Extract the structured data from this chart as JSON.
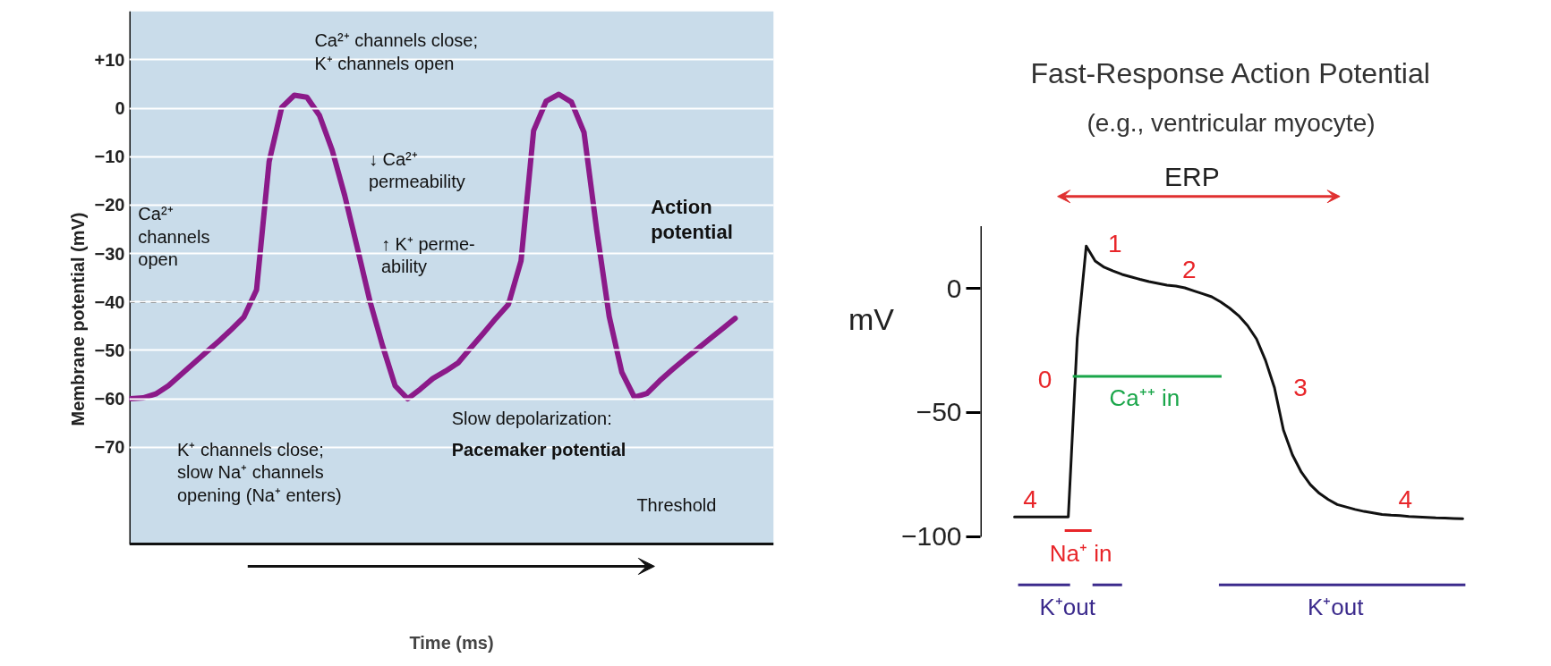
{
  "chart_data": [
    {
      "type": "line",
      "xlabel": "Time (ms)",
      "ylabel": "Membrane potential (mV)",
      "categories": [
        null,
        null,
        null,
        null,
        null,
        null,
        null,
        null,
        null,
        null,
        null,
        null,
        null,
        null,
        null,
        null,
        null,
        null,
        null,
        null,
        null,
        null,
        null,
        null,
        null,
        null,
        null,
        null,
        null,
        null,
        null,
        null,
        null,
        null,
        null,
        null,
        null,
        null,
        null,
        null,
        null,
        null,
        null,
        null,
        null,
        null,
        null,
        null,
        null
      ],
      "series": [
        {
          "color": "#8b1a89",
          "values": [
            -60,
            -59.8,
            -59,
            -57.3,
            -55,
            -52.7,
            -50.4,
            -48.1,
            -45.7,
            -43.1,
            -37.5,
            -11,
            0.2,
            2.7,
            2.3,
            -1.5,
            -8.6,
            -18,
            -28.8,
            -39.8,
            -49,
            -57.3,
            -60,
            -58,
            -55.8,
            -54.3,
            -52.6,
            -49.5,
            -46.5,
            -43.4,
            -40.5,
            -31.5,
            -4.6,
            1.5,
            2.9,
            1.3,
            -5,
            -25,
            -43,
            -54.5,
            -59.7,
            -58.9,
            -56.3,
            -54,
            -51.8,
            -49.7,
            -47.6,
            -45.5,
            -43.4
          ]
        }
      ],
      "ylim": [
        -90,
        20
      ],
      "yticks": [
        {
          "value": 10,
          "label": "+10"
        },
        0,
        -10,
        -20,
        -30,
        -40,
        -50,
        -60,
        -70
      ],
      "grid": "y",
      "tick_labels": "y",
      "ref_lines": [
        {
          "axis": "y",
          "value": -40,
          "label": "Threshold",
          "color": "#000000",
          "line_style": "dashed"
        }
      ],
      "annotations": [
        "Ca²⁺ channels close;\nK⁺ channels open",
        "↓ Ca²⁺\npermeability",
        "Ca²⁺\nchannels\nopen",
        "↑ K⁺ perme-\nability",
        "Action\npotential",
        "K⁺ channels close;\nslow Na⁺ channels\nopening (Na⁺ enters)",
        "Slow depolarization:",
        "Pacemaker potential"
      ]
    },
    {
      "type": "line",
      "title": "Fast-Response Action Potential",
      "subtitle": "(e.g., ventricular myocyte)",
      "ylabel": "mV",
      "categories": [
        null,
        null,
        null,
        null,
        null,
        null,
        null,
        null,
        null,
        null,
        null,
        null,
        null,
        null,
        null,
        null,
        null,
        null,
        null,
        null,
        null,
        null,
        null,
        null,
        null,
        null,
        null,
        null,
        null,
        null,
        null,
        null,
        null,
        null,
        null,
        null,
        null,
        null,
        null,
        null,
        null,
        null,
        null,
        null,
        null,
        null,
        null,
        null,
        null,
        null,
        null
      ],
      "series": [
        {
          "color": "#111111",
          "values": [
            -92,
            -92,
            -92,
            -92,
            -92,
            -92,
            -92,
            -20,
            17,
            11,
            8.5,
            7,
            5.6,
            4.6,
            3.6,
            2.7,
            2,
            1.3,
            0.9,
            0.2,
            -1,
            -2.2,
            -3.4,
            -5.5,
            -8,
            -11,
            -15,
            -20.4,
            -29,
            -40,
            -57,
            -67,
            -74,
            -79,
            -82.5,
            -85,
            -87,
            -88,
            -89,
            -89.8,
            -90.4,
            -91,
            -91.3,
            -91.5,
            -91.8,
            -92,
            -92.2,
            -92.4,
            -92.5,
            -92.6,
            -92.7
          ]
        }
      ],
      "ylim": [
        -100,
        25
      ],
      "yticks": [
        0,
        -50,
        -100
      ],
      "tick_labels": "y",
      "annotations": [
        "ERP",
        "1",
        "2",
        "0",
        "3",
        "4",
        "4",
        "Ca⁺⁺ in",
        "Na⁺ in",
        "K⁺out",
        "K⁺out"
      ]
    }
  ]
}
